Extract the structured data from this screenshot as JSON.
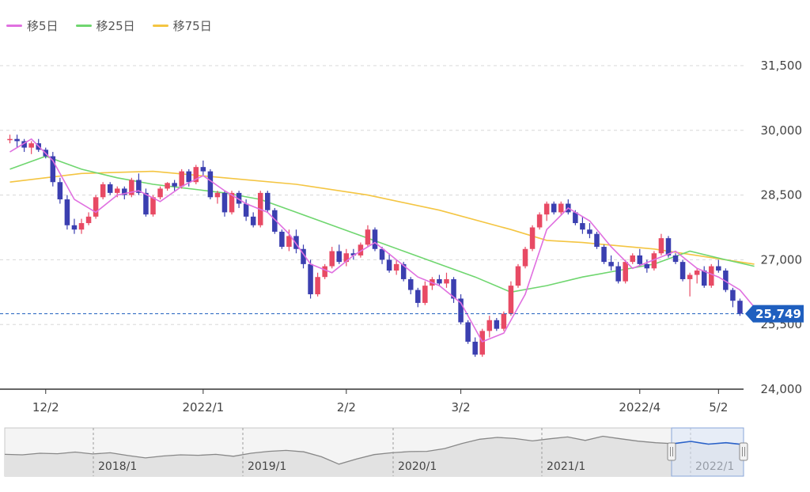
{
  "legend": [
    {
      "label": "移5日",
      "color": "#e070e0"
    },
    {
      "label": "移25日",
      "color": "#6fd66f"
    },
    {
      "label": "移75日",
      "color": "#f4c542"
    }
  ],
  "colors": {
    "up": "#e84a64",
    "down": "#3b3fb0",
    "grid": "#d8d8d8",
    "axis": "#333333",
    "price_tag": "#1f5fbf",
    "navigator_line": "#888888",
    "navigator_selected": "#2a62c9"
  },
  "chart_data": {
    "type": "candlestick",
    "y_ticks": [
      "31,500",
      "30,000",
      "28,500",
      "27,000",
      "25,500",
      "24,000"
    ],
    "ylim": [
      24000,
      31500
    ],
    "x_ticks": [
      "12/2",
      "2022/1",
      "2/2",
      "3/2",
      "2022/4",
      "5/2"
    ],
    "last_price_label": "25,749",
    "last_price": 25749,
    "candles": [
      [
        29800,
        29900,
        29700,
        29800
      ],
      [
        29800,
        29900,
        29600,
        29750
      ],
      [
        29750,
        29800,
        29500,
        29600
      ],
      [
        29600,
        29750,
        29450,
        29700
      ],
      [
        29700,
        29800,
        29500,
        29550
      ],
      [
        29550,
        29600,
        29350,
        29400
      ],
      [
        29400,
        29500,
        28700,
        28800
      ],
      [
        28800,
        28900,
        28300,
        28400
      ],
      [
        28400,
        28500,
        27700,
        27800
      ],
      [
        27800,
        27950,
        27600,
        27700
      ],
      [
        27700,
        27950,
        27600,
        27850
      ],
      [
        27850,
        28100,
        27800,
        28000
      ],
      [
        28000,
        28500,
        27950,
        28450
      ],
      [
        28450,
        28800,
        28400,
        28750
      ],
      [
        28750,
        28800,
        28500,
        28550
      ],
      [
        28550,
        28700,
        28450,
        28650
      ],
      [
        28650,
        28700,
        28400,
        28500
      ],
      [
        28500,
        28900,
        28450,
        28850
      ],
      [
        28850,
        29000,
        28500,
        28550
      ],
      [
        28550,
        28650,
        28000,
        28050
      ],
      [
        28050,
        28500,
        28000,
        28450
      ],
      [
        28450,
        28700,
        28400,
        28650
      ],
      [
        28650,
        28800,
        28600,
        28780
      ],
      [
        28780,
        28850,
        28600,
        28700
      ],
      [
        28700,
        29100,
        28650,
        29050
      ],
      [
        29050,
        29100,
        28700,
        28800
      ],
      [
        28800,
        29200,
        28750,
        29150
      ],
      [
        29150,
        29300,
        28950,
        29050
      ],
      [
        29050,
        29100,
        28400,
        28450
      ],
      [
        28450,
        28600,
        28300,
        28550
      ],
      [
        28550,
        28600,
        28000,
        28100
      ],
      [
        28100,
        28600,
        28050,
        28550
      ],
      [
        28550,
        28600,
        28200,
        28300
      ],
      [
        28300,
        28400,
        27900,
        28000
      ],
      [
        28000,
        28100,
        27750,
        27800
      ],
      [
        27800,
        28600,
        27750,
        28550
      ],
      [
        28550,
        28600,
        28100,
        28150
      ],
      [
        28150,
        28200,
        27600,
        27650
      ],
      [
        27650,
        27700,
        27250,
        27300
      ],
      [
        27300,
        27700,
        27200,
        27550
      ],
      [
        27550,
        27700,
        27150,
        27250
      ],
      [
        27250,
        27350,
        26800,
        26900
      ],
      [
        26900,
        27000,
        26100,
        26200
      ],
      [
        26200,
        26700,
        26150,
        26600
      ],
      [
        26600,
        26900,
        26550,
        26850
      ],
      [
        26850,
        27300,
        26800,
        27200
      ],
      [
        27200,
        27350,
        26900,
        26950
      ],
      [
        26950,
        27250,
        26850,
        27150
      ],
      [
        27150,
        27250,
        27000,
        27100
      ],
      [
        27100,
        27400,
        27050,
        27350
      ],
      [
        27350,
        27800,
        27300,
        27700
      ],
      [
        27700,
        27750,
        27200,
        27250
      ],
      [
        27250,
        27300,
        26900,
        27000
      ],
      [
        27000,
        27150,
        26700,
        26750
      ],
      [
        26750,
        27000,
        26650,
        26900
      ],
      [
        26900,
        26950,
        26500,
        26550
      ],
      [
        26550,
        26600,
        26200,
        26300
      ],
      [
        26300,
        26350,
        25900,
        26000
      ],
      [
        26000,
        26500,
        25950,
        26400
      ],
      [
        26400,
        26600,
        26300,
        26550
      ],
      [
        26550,
        26650,
        26400,
        26450
      ],
      [
        26450,
        26700,
        26350,
        26550
      ],
      [
        26550,
        26600,
        26000,
        26100
      ],
      [
        26100,
        26200,
        25500,
        25550
      ],
      [
        25550,
        25600,
        25050,
        25100
      ],
      [
        25100,
        25200,
        24750,
        24800
      ],
      [
        24800,
        25400,
        24750,
        25350
      ],
      [
        25350,
        25700,
        25200,
        25600
      ],
      [
        25600,
        25650,
        25350,
        25400
      ],
      [
        25400,
        25800,
        25350,
        25750
      ],
      [
        25750,
        26500,
        25700,
        26400
      ],
      [
        26400,
        26900,
        26350,
        26850
      ],
      [
        26850,
        27300,
        26800,
        27250
      ],
      [
        27250,
        27800,
        27200,
        27750
      ],
      [
        27750,
        28100,
        27700,
        28050
      ],
      [
        28050,
        28350,
        27900,
        28300
      ],
      [
        28300,
        28350,
        28050,
        28100
      ],
      [
        28100,
        28350,
        28050,
        28300
      ],
      [
        28300,
        28400,
        28050,
        28100
      ],
      [
        28100,
        28150,
        27800,
        27850
      ],
      [
        27850,
        28000,
        27600,
        27700
      ],
      [
        27700,
        27850,
        27500,
        27600
      ],
      [
        27600,
        27650,
        27250,
        27300
      ],
      [
        27300,
        27350,
        26900,
        26950
      ],
      [
        26950,
        27100,
        26750,
        26850
      ],
      [
        26850,
        26950,
        26450,
        26500
      ],
      [
        26500,
        27000,
        26450,
        26950
      ],
      [
        26950,
        27150,
        26900,
        27100
      ],
      [
        27100,
        27250,
        26850,
        26900
      ],
      [
        26900,
        27000,
        26700,
        26800
      ],
      [
        26800,
        27200,
        26750,
        27150
      ],
      [
        27150,
        27600,
        27100,
        27500
      ],
      [
        27500,
        27550,
        27050,
        27100
      ],
      [
        27100,
        27150,
        26900,
        26950
      ],
      [
        26950,
        27000,
        26500,
        26550
      ],
      [
        26550,
        26700,
        26150,
        26650
      ],
      [
        26650,
        26800,
        26450,
        26750
      ],
      [
        26750,
        26850,
        26350,
        26400
      ],
      [
        26400,
        26900,
        26350,
        26850
      ],
      [
        26850,
        27000,
        26700,
        26750
      ],
      [
        26750,
        26800,
        26250,
        26300
      ],
      [
        26300,
        26350,
        25900,
        26050
      ],
      [
        26050,
        26100,
        25700,
        25750
      ]
    ],
    "ma5": [
      [
        0,
        29500
      ],
      [
        3,
        29800
      ],
      [
        6,
        29300
      ],
      [
        9,
        28400
      ],
      [
        12,
        28100
      ],
      [
        15,
        28500
      ],
      [
        18,
        28600
      ],
      [
        21,
        28350
      ],
      [
        24,
        28700
      ],
      [
        27,
        28950
      ],
      [
        30,
        28600
      ],
      [
        33,
        28300
      ],
      [
        36,
        28100
      ],
      [
        39,
        27600
      ],
      [
        42,
        26900
      ],
      [
        45,
        26700
      ],
      [
        48,
        27100
      ],
      [
        51,
        27400
      ],
      [
        54,
        27000
      ],
      [
        57,
        26600
      ],
      [
        60,
        26400
      ],
      [
        63,
        26000
      ],
      [
        66,
        25100
      ],
      [
        69,
        25300
      ],
      [
        72,
        26200
      ],
      [
        75,
        27700
      ],
      [
        78,
        28200
      ],
      [
        81,
        27900
      ],
      [
        84,
        27300
      ],
      [
        87,
        26800
      ],
      [
        90,
        27000
      ],
      [
        93,
        27200
      ],
      [
        96,
        26800
      ],
      [
        99,
        26600
      ],
      [
        102,
        26300
      ],
      [
        104,
        25900
      ]
    ],
    "ma25": [
      [
        0,
        29100
      ],
      [
        5,
        29400
      ],
      [
        10,
        29100
      ],
      [
        15,
        28900
      ],
      [
        20,
        28750
      ],
      [
        25,
        28650
      ],
      [
        30,
        28550
      ],
      [
        35,
        28400
      ],
      [
        40,
        28100
      ],
      [
        45,
        27800
      ],
      [
        50,
        27500
      ],
      [
        55,
        27200
      ],
      [
        60,
        26900
      ],
      [
        65,
        26600
      ],
      [
        70,
        26250
      ],
      [
        75,
        26400
      ],
      [
        80,
        26600
      ],
      [
        85,
        26750
      ],
      [
        90,
        26900
      ],
      [
        95,
        27200
      ],
      [
        100,
        27000
      ],
      [
        104,
        26850
      ]
    ],
    "ma75": [
      [
        0,
        28800
      ],
      [
        10,
        29000
      ],
      [
        20,
        29050
      ],
      [
        30,
        28900
      ],
      [
        40,
        28750
      ],
      [
        50,
        28500
      ],
      [
        60,
        28150
      ],
      [
        70,
        27700
      ],
      [
        75,
        27450
      ],
      [
        80,
        27400
      ],
      [
        90,
        27250
      ],
      [
        100,
        27000
      ],
      [
        104,
        26900
      ]
    ],
    "navigator": {
      "labels": [
        "2018/1",
        "2019/1",
        "2020/1",
        "2021/1",
        "2022/1"
      ],
      "series": [
        22000,
        21800,
        22500,
        22300,
        23000,
        22200,
        22700,
        21500,
        20500,
        21300,
        21800,
        21600,
        22000,
        21200,
        22500,
        23300,
        23700,
        23100,
        21000,
        17800,
        20000,
        21900,
        22700,
        23200,
        23300,
        24500,
        26700,
        28500,
        29300,
        28800,
        27800,
        28700,
        29500,
        28000,
        29800,
        28700,
        27700,
        27000,
        26600,
        27600,
        26400,
        27000,
        26200
      ]
    }
  }
}
